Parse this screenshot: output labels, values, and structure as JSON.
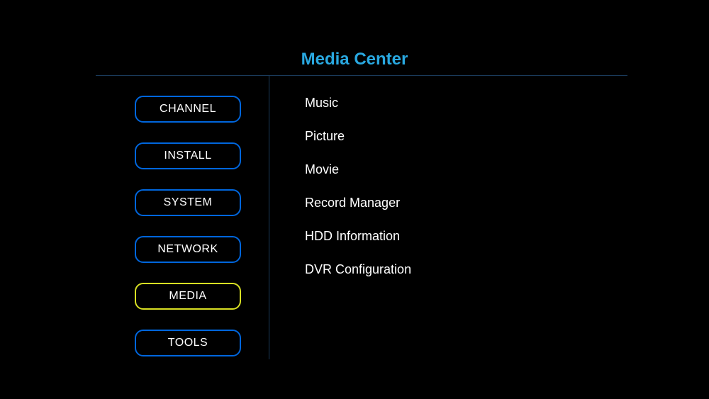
{
  "title": "Media Center",
  "colors": {
    "background": "#000000",
    "title": "#29a8e0",
    "divider": "#1a3a5a",
    "button_border": "#0066dd",
    "button_selected_border": "#d8e023",
    "text": "#ffffff"
  },
  "sidebar": {
    "items": [
      {
        "label": "CHANNEL",
        "selected": false
      },
      {
        "label": "INSTALL",
        "selected": false
      },
      {
        "label": "SYSTEM",
        "selected": false
      },
      {
        "label": "NETWORK",
        "selected": false
      },
      {
        "label": "MEDIA",
        "selected": true
      },
      {
        "label": "TOOLS",
        "selected": false
      }
    ]
  },
  "content": {
    "items": [
      {
        "label": "Music"
      },
      {
        "label": "Picture"
      },
      {
        "label": "Movie"
      },
      {
        "label": "Record Manager"
      },
      {
        "label": "HDD Information"
      },
      {
        "label": "DVR Configuration"
      }
    ]
  }
}
